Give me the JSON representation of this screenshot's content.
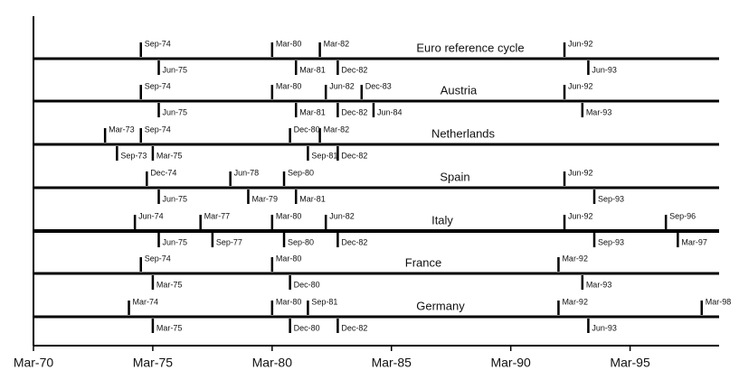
{
  "chart_data": {
    "type": "timeline",
    "xlim": [
      1970.17,
      1998.9
    ],
    "xticks": [
      {
        "value": 1970.17,
        "label": "Mar-70"
      },
      {
        "value": 1975.17,
        "label": "Mar-75"
      },
      {
        "value": 1980.17,
        "label": "Mar-80"
      },
      {
        "value": 1985.17,
        "label": "Mar-85"
      },
      {
        "value": 1990.17,
        "label": "Mar-90"
      },
      {
        "value": 1995.17,
        "label": "Mar-95"
      }
    ],
    "series": [
      {
        "name": "Euro reference cycle",
        "peaks": [
          1974.67,
          1980.17,
          1982.17,
          1992.42
        ],
        "peak_labels": [
          "Sep-74",
          "Mar-80",
          "Mar-82",
          "Jun-92"
        ],
        "troughs": [
          1975.42,
          1981.17,
          1982.92,
          1993.42
        ],
        "trough_labels": [
          "Jun-75",
          "Mar-81",
          "Dec-82",
          "Jun-93"
        ]
      },
      {
        "name": "Austria",
        "peaks": [
          1974.67,
          1980.17,
          1982.42,
          1983.92,
          1992.42
        ],
        "peak_labels": [
          "Sep-74",
          "Mar-80",
          "Jun-82",
          "Dec-83",
          "Jun-92"
        ],
        "troughs": [
          1975.42,
          1981.17,
          1982.92,
          1984.42,
          1993.17
        ],
        "trough_labels": [
          "Jun-75",
          "Mar-81",
          "Dec-82",
          "Jun-84",
          "Mar-93"
        ]
      },
      {
        "name": "Netherlands",
        "peaks": [
          1973.17,
          1974.67,
          1980.92,
          1982.17
        ],
        "peak_labels": [
          "Mar-73",
          "Sep-74",
          "Dec-80",
          "Mar-82"
        ],
        "troughs": [
          1973.67,
          1975.17,
          1981.67,
          1982.92
        ],
        "trough_labels": [
          "Sep-73",
          "Mar-75",
          "Sep-81",
          "Dec-82"
        ]
      },
      {
        "name": "Spain",
        "peaks": [
          1974.92,
          1978.42,
          1980.67,
          1992.42
        ],
        "peak_labels": [
          "Dec-74",
          "Jun-78",
          "Sep-80",
          "Jun-92"
        ],
        "troughs": [
          1975.42,
          1979.17,
          1981.17,
          1993.67
        ],
        "trough_labels": [
          "Jun-75",
          "Mar-79",
          "Mar-81",
          "Sep-93"
        ]
      },
      {
        "name": "Italy",
        "peaks": [
          1974.42,
          1977.17,
          1980.17,
          1982.42,
          1992.42,
          1996.67
        ],
        "peak_labels": [
          "Jun-74",
          "Mar-77",
          "Mar-80",
          "Jun-82",
          "Jun-92",
          "Sep-96"
        ],
        "troughs": [
          1975.42,
          1977.67,
          1980.67,
          1982.92,
          1993.67,
          1997.17
        ],
        "trough_labels": [
          "Jun-75",
          "Sep-77",
          "Sep-80",
          "Dec-82",
          "Sep-93",
          "Mar-97"
        ]
      },
      {
        "name": "France",
        "peaks": [
          1974.67,
          1980.17,
          1992.17
        ],
        "peak_labels": [
          "Sep-74",
          "Mar-80",
          "Mar-92"
        ],
        "troughs": [
          1975.17,
          1980.92,
          1993.17
        ],
        "trough_labels": [
          "Mar-75",
          "Dec-80",
          "Mar-93"
        ]
      },
      {
        "name": "Germany",
        "peaks": [
          1974.17,
          1980.17,
          1981.67,
          1992.17,
          1998.17
        ],
        "peak_labels": [
          "Mar-74",
          "Mar-80",
          "Sep-81",
          "Mar-92",
          "Mar-98"
        ],
        "troughs": [
          1975.17,
          1980.92,
          1982.92,
          1993.42
        ],
        "trough_labels": [
          "Mar-75",
          "Dec-80",
          "Dec-82",
          "Jun-93"
        ]
      }
    ]
  }
}
